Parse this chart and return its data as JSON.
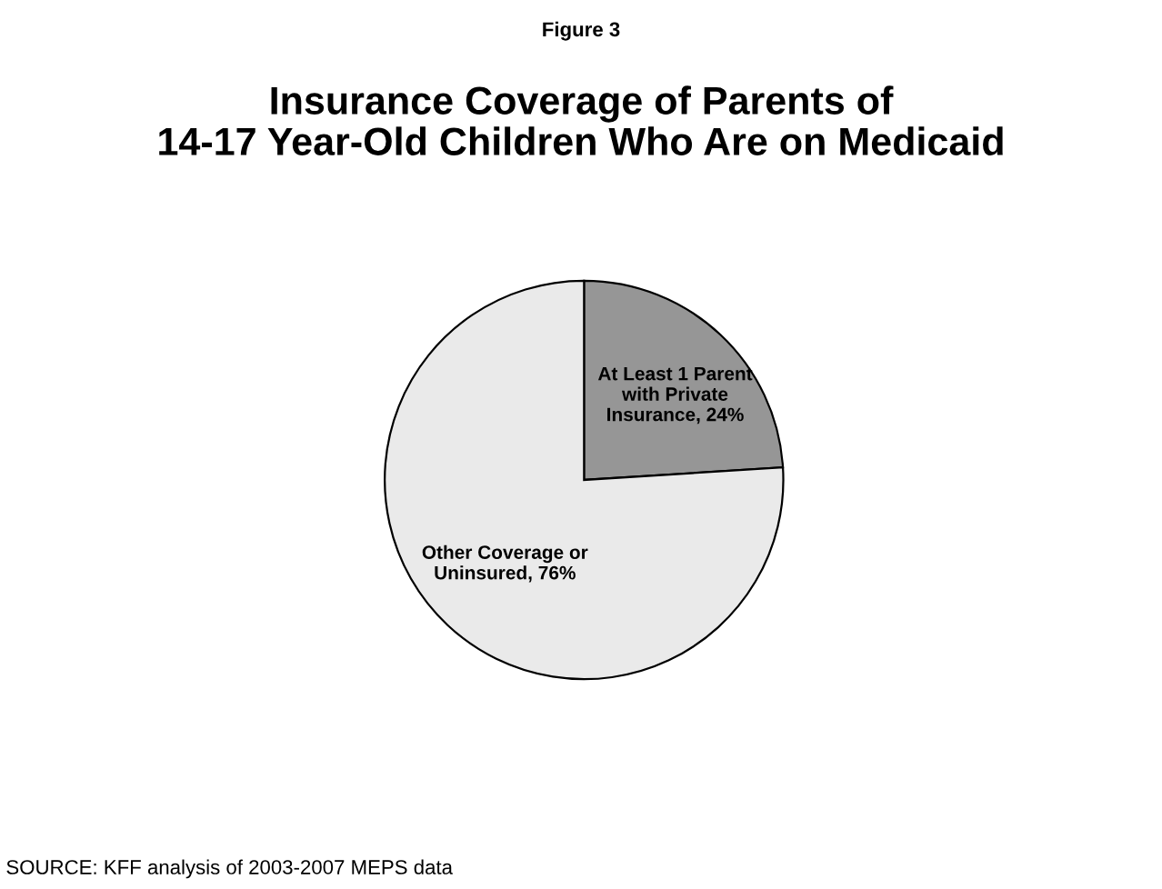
{
  "chart_data": {
    "type": "pie",
    "title": "Insurance Coverage of Parents of\n14-17 Year-Old Children Who Are on Medicaid",
    "categories": [
      "At Least 1 Parent with Private Insurance, 24%",
      "Other Coverage or Uninsured, 76%"
    ],
    "values": [
      24,
      76
    ],
    "colors": [
      "#969696",
      "#eaeaea"
    ],
    "annotations": [
      "Figure 3",
      "SOURCE: KFF analysis of 2003-2007 MEPS data"
    ]
  }
}
